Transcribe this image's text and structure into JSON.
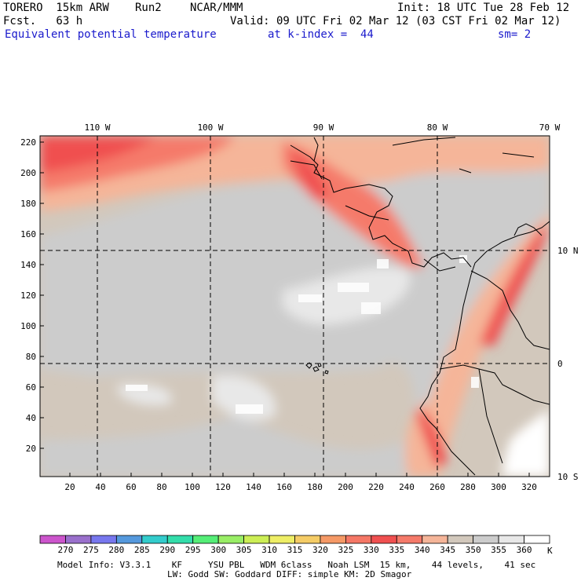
{
  "header": {
    "model": "TORERO  15km ARW",
    "run": "Run2",
    "org": "NCAR/MMM",
    "init": "Init: 18 UTC Tue 28 Feb 12",
    "fcst": "Fcst.   63 h",
    "valid": "Valid: 09 UTC Fri 02 Mar 12 (03 CST Fri 02 Mar 12)",
    "field": "Equivalent potential temperature",
    "level": "at k-index =  44",
    "smooth": "sm= 2"
  },
  "map": {
    "lon_labels": [
      "110 W",
      "100 W",
      "90 W",
      "80 W",
      "70 W"
    ],
    "lat_labels": [
      "10 N",
      "0",
      "10 S"
    ],
    "y_ticks": [
      "220",
      "200",
      "180",
      "160",
      "140",
      "120",
      "100",
      "80",
      "60",
      "40",
      "20"
    ],
    "x_ticks": [
      "20",
      "40",
      "60",
      "80",
      "100",
      "120",
      "140",
      "160",
      "180",
      "200",
      "220",
      "240",
      "260",
      "280",
      "300",
      "320"
    ]
  },
  "colorbar": {
    "labels": [
      "270",
      "275",
      "280",
      "285",
      "290",
      "295",
      "300",
      "305",
      "310",
      "315",
      "320",
      "325",
      "330",
      "335",
      "340",
      "345",
      "350",
      "355",
      "360"
    ],
    "unit": "K",
    "colors": [
      "#cc55cc",
      "#9a70cc",
      "#7777ee",
      "#5599dd",
      "#33cccc",
      "#33ddaa",
      "#55ee77",
      "#99ee66",
      "#ccee55",
      "#eeee66",
      "#f5cc66",
      "#f59966",
      "#f57766",
      "#f05050",
      "#f57a6a",
      "#f5b599",
      "#d2c8bc",
      "#cccccc",
      "#e8e8e8",
      "#ffffff"
    ]
  },
  "footer": {
    "line1": "Model Info: V3.3.1    KF     YSU PBL   WDM 6class   Noah LSM  15 km,    44 levels,    41 sec",
    "line2": "LW: Godd SW: Goddard DIFF: simple KM: 2D Smagor"
  }
}
